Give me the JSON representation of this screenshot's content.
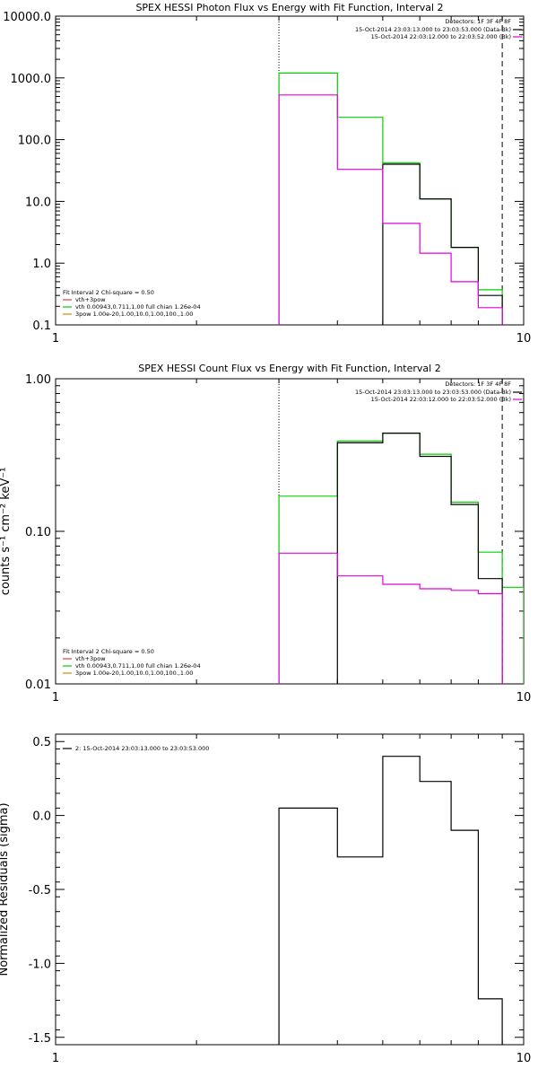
{
  "chart_data": [
    {
      "type": "line",
      "title": "SPEX HESSI Photon Flux vs Energy with Fit Function, Interval 2",
      "xscale": "log",
      "yscale": "log",
      "xlim": [
        1,
        10
      ],
      "ylim": [
        0.1,
        10000
      ],
      "xticks": [
        1,
        10
      ],
      "xticklabels": [
        "1",
        "10"
      ],
      "yticks": [
        0.1,
        1,
        10,
        100,
        1000,
        10000
      ],
      "yticklabels": [
        "0.1",
        "1.0",
        "10.0",
        "100.0",
        "1000.0",
        "10000.0"
      ],
      "xlabel": "",
      "ylabel": "",
      "vlines": [
        {
          "x": 3,
          "style": "dotted"
        },
        {
          "x": 9,
          "style": "dashed"
        }
      ],
      "legend_topright": {
        "header": "Detectors: 1F 3F 4F 8F",
        "items": [
          {
            "text": "15-Oct-2014 23:03:13.000 to 23:03:53.000 (Data-Bk)",
            "color": "#000000"
          },
          {
            "text": "15-Oct-2014 22:03:12.000 to 22:03:52.000 (Bk)",
            "color": "#e000e0"
          }
        ]
      },
      "legend_bottomleft": {
        "header": "Fit Interval 2   Chi-square = 0.50",
        "items": [
          {
            "text": "vth+3pow",
            "color": "#e04040"
          },
          {
            "text": "vth 0.00943,0.711,1.00   full chian 1.26e-04",
            "color": "#00d000"
          },
          {
            "text": "3pow 1.00e-20,1.00,10.0,1.00,100.,1.00",
            "color": "#d09000"
          }
        ]
      },
      "series": [
        {
          "color": "#00d000",
          "edges": [
            3,
            4,
            5,
            6,
            7,
            8,
            9
          ],
          "values": [
            1200,
            230,
            42,
            11,
            1.8,
            0.37
          ]
        },
        {
          "color": "#000000",
          "edges": [
            5,
            6,
            7,
            8,
            9
          ],
          "values": [
            40,
            11,
            1.8,
            0.3
          ]
        },
        {
          "color": "#e000e0",
          "edges": [
            3,
            4,
            5,
            6,
            7,
            8,
            9
          ],
          "values": [
            530,
            33,
            4.4,
            1.45,
            0.5,
            0.19
          ]
        }
      ]
    },
    {
      "type": "line",
      "title": "SPEX HESSI Count Flux vs Energy with Fit Function, Interval 2",
      "xscale": "log",
      "yscale": "log",
      "xlim": [
        1,
        10
      ],
      "ylim": [
        0.01,
        1
      ],
      "xticks": [
        1,
        10
      ],
      "xticklabels": [
        "1",
        "10"
      ],
      "yticks": [
        0.01,
        0.1,
        1
      ],
      "yticklabels": [
        "0.01",
        "0.10",
        "1.00"
      ],
      "xlabel": "",
      "ylabel": "counts s⁻¹ cm⁻² keV⁻¹",
      "vlines": [
        {
          "x": 3,
          "style": "dotted"
        },
        {
          "x": 9,
          "style": "dashed"
        }
      ],
      "legend_topright": {
        "header": "Detectors: 1F 3F 4F 8F",
        "items": [
          {
            "text": "15-Oct-2014 23:03:13.000 to 23:03:53.000 (Data-Bk)",
            "color": "#000000"
          },
          {
            "text": "15-Oct-2014 22:03:12.000 to 22:03:52.000 (Bk)",
            "color": "#e000e0"
          }
        ]
      },
      "legend_bottomleft": {
        "header": "Fit Interval 2   Chi-square = 0.50",
        "items": [
          {
            "text": "vth+3pow",
            "color": "#e04040"
          },
          {
            "text": "vth 0.00943,0.711,1.00   full chian 1.26e-04",
            "color": "#00d000"
          },
          {
            "text": "3pow 1.00e-20,1.00,10.0,1.00,100.,1.00",
            "color": "#d09000"
          }
        ]
      },
      "series": [
        {
          "color": "#00d000",
          "edges": [
            3,
            4,
            5,
            6,
            7,
            8,
            9,
            10
          ],
          "values": [
            0.17,
            0.39,
            0.44,
            0.32,
            0.155,
            0.073,
            0.043
          ]
        },
        {
          "color": "#000000",
          "edges": [
            4,
            5,
            6,
            7,
            8,
            9
          ],
          "values": [
            0.38,
            0.44,
            0.31,
            0.15,
            0.049
          ]
        },
        {
          "color": "#e000e0",
          "edges": [
            3,
            4,
            5,
            6,
            7,
            8,
            9
          ],
          "values": [
            0.072,
            0.051,
            0.045,
            0.042,
            0.041,
            0.039
          ]
        }
      ]
    },
    {
      "type": "line",
      "title": "",
      "xscale": "log",
      "yscale": "linear",
      "xlim": [
        1,
        10
      ],
      "ylim": [
        -1.55,
        0.55
      ],
      "xticks": [
        1,
        10
      ],
      "xticklabels": [
        "1",
        "10"
      ],
      "yticks": [
        -1.5,
        -1.0,
        -0.5,
        0.0,
        0.5
      ],
      "yticklabels": [
        "-1.5",
        "-1.0",
        "-0.5",
        "0.0",
        "0.5"
      ],
      "xlabel": "",
      "ylabel": "Normalized Residuals (sigma)",
      "vlines": [],
      "legend_topleft": {
        "items": [
          {
            "text": "2: 15-Oct-2014 23:03:13.000 to 23:03:53.000",
            "color": "#000000"
          }
        ]
      },
      "series": [
        {
          "color": "#000000",
          "edges": [
            3,
            4,
            5,
            6,
            7,
            8,
            9
          ],
          "values": [
            0.05,
            -0.28,
            0.4,
            0.23,
            -0.1,
            -1.24
          ]
        }
      ]
    }
  ]
}
